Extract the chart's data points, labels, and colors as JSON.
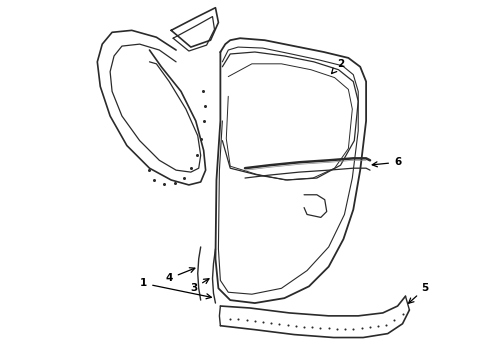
{
  "bg_color": "#ffffff",
  "line_color": "#2a2a2a",
  "label_color": "#000000",
  "fig_w": 4.9,
  "fig_h": 3.6,
  "dpi": 100
}
